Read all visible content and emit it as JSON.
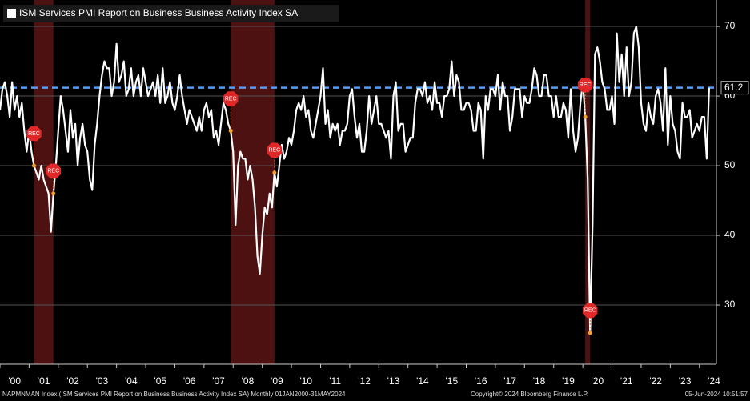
{
  "chart_data": {
    "type": "line",
    "title": "ISM Services PMI Report on Business Business Activity Index SA",
    "footer_left": "NAPMNMAN Index (ISM Services PMI Report on Business Business Activity Index SA)  Monthly 01JAN2000-31MAY2024",
    "footer_center": "Copyright© 2024 Bloomberg Finance L.P.",
    "footer_right": "05-Jun-2024 10:51:57",
    "color": "#ffffff",
    "x": [
      "2000-01",
      "2000-02",
      "2000-03",
      "2000-04",
      "2000-05",
      "2000-06",
      "2000-07",
      "2000-08",
      "2000-09",
      "2000-10",
      "2000-11",
      "2000-12",
      "2001-01",
      "2001-02",
      "2001-03",
      "2001-04",
      "2001-05",
      "2001-06",
      "2001-07",
      "2001-08",
      "2001-09",
      "2001-10",
      "2001-11",
      "2001-12",
      "2002-01",
      "2002-02",
      "2002-03",
      "2002-04",
      "2002-05",
      "2002-06",
      "2002-07",
      "2002-08",
      "2002-09",
      "2002-10",
      "2002-11",
      "2002-12",
      "2003-01",
      "2003-02",
      "2003-03",
      "2003-04",
      "2003-05",
      "2003-06",
      "2003-07",
      "2003-08",
      "2003-09",
      "2003-10",
      "2003-11",
      "2003-12",
      "2004-01",
      "2004-02",
      "2004-03",
      "2004-04",
      "2004-05",
      "2004-06",
      "2004-07",
      "2004-08",
      "2004-09",
      "2004-10",
      "2004-11",
      "2004-12",
      "2005-01",
      "2005-02",
      "2005-03",
      "2005-04",
      "2005-05",
      "2005-06",
      "2005-07",
      "2005-08",
      "2005-09",
      "2005-10",
      "2005-11",
      "2005-12",
      "2006-01",
      "2006-02",
      "2006-03",
      "2006-04",
      "2006-05",
      "2006-06",
      "2006-07",
      "2006-08",
      "2006-09",
      "2006-10",
      "2006-11",
      "2006-12",
      "2007-01",
      "2007-02",
      "2007-03",
      "2007-04",
      "2007-05",
      "2007-06",
      "2007-07",
      "2007-08",
      "2007-09",
      "2007-10",
      "2007-11",
      "2007-12",
      "2008-01",
      "2008-02",
      "2008-03",
      "2008-04",
      "2008-05",
      "2008-06",
      "2008-07",
      "2008-08",
      "2008-09",
      "2008-10",
      "2008-11",
      "2008-12",
      "2009-01",
      "2009-02",
      "2009-03",
      "2009-04",
      "2009-05",
      "2009-06",
      "2009-07",
      "2009-08",
      "2009-09",
      "2009-10",
      "2009-11",
      "2009-12",
      "2010-01",
      "2010-02",
      "2010-03",
      "2010-04",
      "2010-05",
      "2010-06",
      "2010-07",
      "2010-08",
      "2010-09",
      "2010-10",
      "2010-11",
      "2010-12",
      "2011-01",
      "2011-02",
      "2011-03",
      "2011-04",
      "2011-05",
      "2011-06",
      "2011-07",
      "2011-08",
      "2011-09",
      "2011-10",
      "2011-11",
      "2011-12",
      "2012-01",
      "2012-02",
      "2012-03",
      "2012-04",
      "2012-05",
      "2012-06",
      "2012-07",
      "2012-08",
      "2012-09",
      "2012-10",
      "2012-11",
      "2012-12",
      "2013-01",
      "2013-02",
      "2013-03",
      "2013-04",
      "2013-05",
      "2013-06",
      "2013-07",
      "2013-08",
      "2013-09",
      "2013-10",
      "2013-11",
      "2013-12",
      "2014-01",
      "2014-02",
      "2014-03",
      "2014-04",
      "2014-05",
      "2014-06",
      "2014-07",
      "2014-08",
      "2014-09",
      "2014-10",
      "2014-11",
      "2014-12",
      "2015-01",
      "2015-02",
      "2015-03",
      "2015-04",
      "2015-05",
      "2015-06",
      "2015-07",
      "2015-08",
      "2015-09",
      "2015-10",
      "2015-11",
      "2015-12",
      "2016-01",
      "2016-02",
      "2016-03",
      "2016-04",
      "2016-05",
      "2016-06",
      "2016-07",
      "2016-08",
      "2016-09",
      "2016-10",
      "2016-11",
      "2016-12",
      "2017-01",
      "2017-02",
      "2017-03",
      "2017-04",
      "2017-05",
      "2017-06",
      "2017-07",
      "2017-08",
      "2017-09",
      "2017-10",
      "2017-11",
      "2017-12",
      "2018-01",
      "2018-02",
      "2018-03",
      "2018-04",
      "2018-05",
      "2018-06",
      "2018-07",
      "2018-08",
      "2018-09",
      "2018-10",
      "2018-11",
      "2018-12",
      "2019-01",
      "2019-02",
      "2019-03",
      "2019-04",
      "2019-05",
      "2019-06",
      "2019-07",
      "2019-08",
      "2019-09",
      "2019-10",
      "2019-11",
      "2019-12",
      "2020-01",
      "2020-02",
      "2020-03",
      "2020-04",
      "2020-05",
      "2020-06",
      "2020-07",
      "2020-08",
      "2020-09",
      "2020-10",
      "2020-11",
      "2020-12",
      "2021-01",
      "2021-02",
      "2021-03",
      "2021-04",
      "2021-05",
      "2021-06",
      "2021-07",
      "2021-08",
      "2021-09",
      "2021-10",
      "2021-11",
      "2021-12",
      "2022-01",
      "2022-02",
      "2022-03",
      "2022-04",
      "2022-05",
      "2022-06",
      "2022-07",
      "2022-08",
      "2022-09",
      "2022-10",
      "2022-11",
      "2022-12",
      "2023-01",
      "2023-02",
      "2023-03",
      "2023-04",
      "2023-05",
      "2023-06",
      "2023-07",
      "2023-08",
      "2023-09",
      "2023-10",
      "2023-11",
      "2023-12",
      "2024-01",
      "2024-02",
      "2024-03",
      "2024-04",
      "2024-05"
    ],
    "values": [
      58,
      61,
      62,
      60,
      57,
      62,
      58,
      60,
      57,
      59,
      55,
      52,
      55,
      52,
      50,
      49,
      48,
      50,
      48,
      47,
      46,
      40.5,
      46,
      50,
      55,
      60,
      58,
      55,
      52,
      58,
      54,
      56,
      50,
      54,
      56,
      53,
      52,
      48,
      46.5,
      53,
      56,
      60,
      63,
      65,
      64,
      64,
      60,
      62,
      67.5,
      62,
      63,
      65,
      60,
      61,
      64,
      60,
      62,
      63,
      60,
      64,
      62,
      60,
      61,
      62,
      60,
      63,
      59,
      64,
      59,
      60,
      62,
      59,
      58,
      60,
      63,
      60,
      58,
      56,
      58,
      57,
      56,
      55,
      57,
      55,
      58,
      59,
      57,
      58,
      54,
      55,
      53,
      56,
      59,
      58,
      56,
      55,
      52,
      41.5,
      50,
      52,
      51,
      51,
      48,
      50,
      48,
      44,
      37,
      34.5,
      40,
      44,
      43,
      46,
      44,
      49,
      47,
      50,
      53,
      51,
      52,
      54,
      53,
      55,
      58,
      59,
      58,
      60,
      57,
      58,
      55,
      54,
      56,
      58,
      60,
      64,
      56,
      58,
      54,
      56,
      55,
      56,
      53,
      55,
      55,
      56,
      60,
      61,
      57,
      54,
      56,
      52,
      52,
      55,
      60,
      56,
      58,
      60,
      56,
      56,
      55,
      54,
      55,
      51,
      60,
      62,
      55,
      56,
      56,
      52,
      53,
      54,
      54,
      59,
      61,
      61,
      60,
      62,
      59,
      60,
      58,
      62,
      59,
      59,
      57,
      60,
      60,
      61,
      65,
      60,
      63,
      62,
      58,
      58,
      59,
      59,
      58,
      55,
      55,
      59,
      58,
      51,
      60,
      58,
      61,
      61,
      60,
      63,
      58,
      62,
      60,
      60,
      55,
      57,
      61,
      61,
      61,
      57,
      60,
      59,
      59,
      61,
      64,
      63,
      60,
      60,
      63,
      63,
      60,
      60,
      57,
      60,
      57,
      57,
      59,
      58,
      54,
      61,
      55,
      52,
      54,
      59,
      62,
      57,
      48,
      26,
      41.5,
      66,
      67,
      65,
      62,
      61,
      58,
      58,
      60,
      56,
      69,
      62,
      66,
      60,
      67,
      60,
      62,
      69,
      70,
      67,
      59,
      56,
      55,
      59,
      57,
      56,
      60,
      61,
      59,
      55,
      64,
      53,
      60,
      56,
      55,
      52,
      51,
      59,
      57,
      57,
      58,
      54,
      55,
      56,
      55,
      57,
      57,
      51,
      61.2
    ],
    "xlim": [
      "2000-01",
      "2024-08"
    ],
    "xticks": [
      {
        "value": "2000-01",
        "label": "'00"
      },
      {
        "value": "2001-01",
        "label": "'01"
      },
      {
        "value": "2002-01",
        "label": "'02"
      },
      {
        "value": "2003-01",
        "label": "'03"
      },
      {
        "value": "2004-01",
        "label": "'04"
      },
      {
        "value": "2005-01",
        "label": "'05"
      },
      {
        "value": "2006-01",
        "label": "'06"
      },
      {
        "value": "2007-01",
        "label": "'07"
      },
      {
        "value": "2008-01",
        "label": "'08"
      },
      {
        "value": "2009-01",
        "label": "'09"
      },
      {
        "value": "2010-01",
        "label": "'10"
      },
      {
        "value": "2011-01",
        "label": "'11"
      },
      {
        "value": "2012-01",
        "label": "'12"
      },
      {
        "value": "2013-01",
        "label": "'13"
      },
      {
        "value": "2014-01",
        "label": "'14"
      },
      {
        "value": "2015-01",
        "label": "'15"
      },
      {
        "value": "2016-01",
        "label": "'16"
      },
      {
        "value": "2017-01",
        "label": "'17"
      },
      {
        "value": "2018-01",
        "label": "'18"
      },
      {
        "value": "2019-01",
        "label": "'19"
      },
      {
        "value": "2020-01",
        "label": "'20"
      },
      {
        "value": "2021-01",
        "label": "'21"
      },
      {
        "value": "2022-01",
        "label": "'22"
      },
      {
        "value": "2023-01",
        "label": "'23"
      },
      {
        "value": "2024-01",
        "label": "'24"
      }
    ],
    "ylim": [
      21.5,
      73.8
    ],
    "yticks": [
      30,
      40,
      50,
      60,
      70
    ],
    "grid": true,
    "reference_line": {
      "value": 61.2,
      "color": "#5b9bf5"
    },
    "recession_label": "REC",
    "recessions": [
      {
        "start": "2001-03",
        "end": "2001-11"
      },
      {
        "start": "2007-12",
        "end": "2009-06"
      },
      {
        "start": "2020-02",
        "end": "2020-04"
      }
    ]
  }
}
